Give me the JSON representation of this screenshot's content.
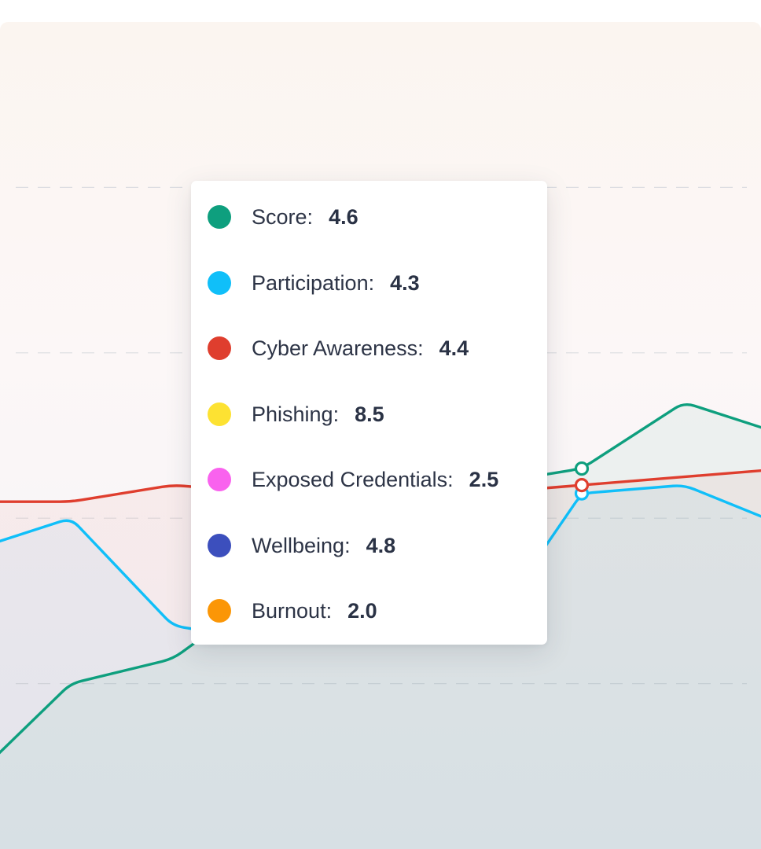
{
  "chart_data": {
    "type": "line",
    "x": [
      0,
      1,
      2,
      3,
      4,
      5,
      6,
      7,
      8
    ],
    "ylim": [
      0,
      10
    ],
    "grid": true,
    "legend": "none",
    "highlighted_index": 6,
    "series": [
      {
        "name": "Score",
        "color": "#0e9f7e",
        "values": [
          0.8,
          2.0,
          2.3,
          3.2,
          5.5,
          4.4,
          4.6,
          5.4,
          5.0
        ]
      },
      {
        "name": "Participation",
        "color": "#10bff9",
        "values": [
          3.6,
          4.0,
          2.7,
          2.5,
          2.5,
          2.5,
          4.3,
          4.4,
          3.9
        ]
      },
      {
        "name": "Cyber Awareness",
        "color": "#df3e2e",
        "values": [
          4.2,
          4.2,
          4.4,
          4.3,
          4.3,
          4.3,
          4.4,
          4.5,
          4.6
        ]
      }
    ]
  },
  "tooltip": {
    "items": [
      {
        "label": "Score",
        "value": "4.6",
        "color": "#0e9f7e"
      },
      {
        "label": "Participation",
        "value": "4.3",
        "color": "#10bff9"
      },
      {
        "label": "Cyber Awareness",
        "value": "4.4",
        "color": "#df3e2e"
      },
      {
        "label": "Phishing",
        "value": "8.5",
        "color": "#fde232"
      },
      {
        "label": "Exposed Credentials",
        "value": "2.5",
        "color": "#f962ee"
      },
      {
        "label": "Wellbeing",
        "value": "4.8",
        "color": "#3c4fbd"
      },
      {
        "label": "Burnout",
        "value": "2.0",
        "color": "#fb9606"
      }
    ]
  }
}
